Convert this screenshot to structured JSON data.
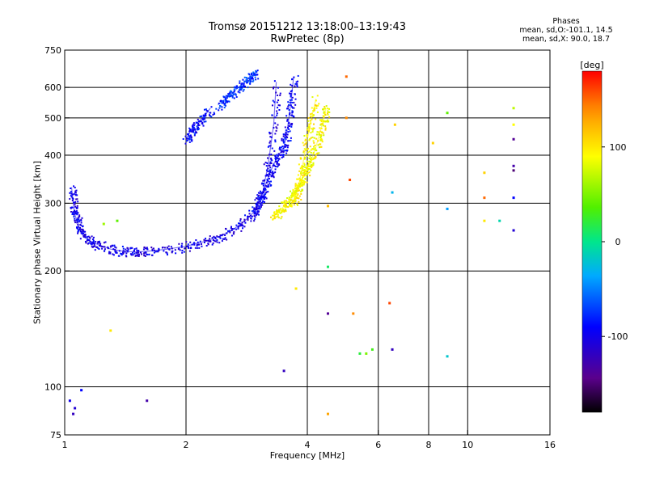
{
  "title_line1": "Tromsø 20151212 13:18:00–13:19:43",
  "title_line2": "RwPretec (8p)",
  "phases_box": {
    "heading": "Phases",
    "line_o": "mean, sd,O:-101.1, 14.5",
    "line_x": "mean, sd,X:  90.0, 18.7"
  },
  "colorbar": {
    "label": "[deg]",
    "ticks": [
      "100",
      "0",
      "-100"
    ],
    "range": [
      -180,
      180
    ]
  },
  "chart_data": {
    "type": "scatter",
    "xlabel": "Frequency [MHz]",
    "ylabel": "Stationary phase Virtual Height [km]",
    "xscale": "log",
    "yscale": "log",
    "xlim": [
      1,
      16
    ],
    "ylim": [
      75,
      750
    ],
    "grid": true,
    "xticks": [
      {
        "v": 1,
        "t": "1"
      },
      {
        "v": 2,
        "t": "2"
      },
      {
        "v": 4,
        "t": "4"
      },
      {
        "v": 6,
        "t": "6"
      },
      {
        "v": 8,
        "t": "8"
      },
      {
        "v": 10,
        "t": "10"
      },
      {
        "v": 16,
        "t": "16"
      }
    ],
    "yticks": [
      {
        "v": 75,
        "t": "75"
      },
      {
        "v": 100,
        "t": "100"
      },
      {
        "v": 200,
        "t": "200"
      },
      {
        "v": 300,
        "t": "300"
      },
      {
        "v": 400,
        "t": "400"
      },
      {
        "v": 500,
        "t": "500"
      },
      {
        "v": 600,
        "t": "600"
      },
      {
        "v": 750,
        "t": "750"
      }
    ],
    "grid_x": [
      2,
      4,
      6,
      8,
      10
    ],
    "grid_y": [
      100,
      200,
      300,
      400,
      500,
      600
    ],
    "color_by": "phase [deg]",
    "traces": [
      {
        "mode": "O",
        "phase": -101.1,
        "x": [
          1.04,
          1.05,
          1.06,
          1.08,
          1.1,
          1.15,
          1.2,
          1.3,
          1.4,
          1.5,
          1.6,
          1.8,
          2.0,
          2.2,
          2.4,
          2.6,
          2.8,
          3.0,
          3.1,
          3.2,
          3.3,
          3.35
        ],
        "y": [
          330,
          300,
          280,
          265,
          250,
          240,
          235,
          228,
          225,
          224,
          225,
          228,
          232,
          238,
          245,
          255,
          270,
          290,
          320,
          380,
          480,
          620
        ]
      },
      {
        "mode": "O",
        "phase": -95,
        "x": [
          2.95,
          3.0,
          3.1,
          3.2,
          3.3,
          3.4,
          3.5,
          3.55,
          3.6,
          3.65,
          3.7
        ],
        "y": [
          280,
          300,
          320,
          350,
          380,
          400,
          420,
          450,
          500,
          560,
          640
        ]
      },
      {
        "mode": "O",
        "phase": -90,
        "x": [
          2.0,
          2.05,
          2.1,
          2.2,
          2.3
        ],
        "y": [
          440,
          460,
          480,
          500,
          530
        ]
      },
      {
        "mode": "O",
        "phase": -75,
        "x": [
          2.4,
          2.5,
          2.6,
          2.7,
          2.8,
          2.9,
          3.0
        ],
        "y": [
          540,
          560,
          580,
          600,
          620,
          640,
          650
        ]
      },
      {
        "mode": "X",
        "phase": 90,
        "x": [
          3.3,
          3.4,
          3.5,
          3.6,
          3.7,
          3.8,
          3.9,
          4.0,
          4.1,
          4.2,
          4.3,
          4.4,
          4.45
        ],
        "y": [
          280,
          285,
          295,
          305,
          320,
          335,
          350,
          370,
          390,
          420,
          460,
          500,
          530
        ]
      },
      {
        "mode": "X",
        "phase": 95,
        "x": [
          3.7,
          3.8,
          3.9,
          4.0,
          4.1,
          4.2
        ],
        "y": [
          300,
          330,
          380,
          440,
          500,
          560
        ]
      }
    ],
    "scatter_points": [
      {
        "x": 1.05,
        "y": 85,
        "phase": -120
      },
      {
        "x": 1.06,
        "y": 88,
        "phase": -110
      },
      {
        "x": 1.03,
        "y": 92,
        "phase": -100
      },
      {
        "x": 1.1,
        "y": 98,
        "phase": -90
      },
      {
        "x": 1.3,
        "y": 140,
        "phase": 100
      },
      {
        "x": 1.35,
        "y": 270,
        "phase": 40
      },
      {
        "x": 1.25,
        "y": 265,
        "phase": 60
      },
      {
        "x": 1.6,
        "y": 92,
        "phase": -130
      },
      {
        "x": 3.5,
        "y": 110,
        "phase": -120
      },
      {
        "x": 3.75,
        "y": 180,
        "phase": 100
      },
      {
        "x": 4.5,
        "y": 155,
        "phase": -140
      },
      {
        "x": 4.5,
        "y": 205,
        "phase": 10
      },
      {
        "x": 4.5,
        "y": 295,
        "phase": 120
      },
      {
        "x": 4.5,
        "y": 85,
        "phase": 130
      },
      {
        "x": 5.2,
        "y": 155,
        "phase": 140
      },
      {
        "x": 5.4,
        "y": 122,
        "phase": 20
      },
      {
        "x": 5.6,
        "y": 122,
        "phase": 50
      },
      {
        "x": 5.8,
        "y": 125,
        "phase": 30
      },
      {
        "x": 5.0,
        "y": 640,
        "phase": 150
      },
      {
        "x": 5.0,
        "y": 500,
        "phase": 140
      },
      {
        "x": 5.1,
        "y": 345,
        "phase": 160
      },
      {
        "x": 6.5,
        "y": 125,
        "phase": -120
      },
      {
        "x": 6.4,
        "y": 165,
        "phase": 160
      },
      {
        "x": 6.5,
        "y": 320,
        "phase": -30
      },
      {
        "x": 6.6,
        "y": 480,
        "phase": 110
      },
      {
        "x": 8.2,
        "y": 430,
        "phase": 110
      },
      {
        "x": 8.9,
        "y": 120,
        "phase": -20
      },
      {
        "x": 8.9,
        "y": 290,
        "phase": -40
      },
      {
        "x": 8.9,
        "y": 515,
        "phase": 40
      },
      {
        "x": 11,
        "y": 360,
        "phase": 110
      },
      {
        "x": 11,
        "y": 270,
        "phase": 100
      },
      {
        "x": 11,
        "y": 310,
        "phase": 150
      },
      {
        "x": 12,
        "y": 270,
        "phase": -10
      },
      {
        "x": 13,
        "y": 530,
        "phase": 70
      },
      {
        "x": 13,
        "y": 480,
        "phase": 90
      },
      {
        "x": 13,
        "y": 440,
        "phase": -140
      },
      {
        "x": 13,
        "y": 375,
        "phase": -130
      },
      {
        "x": 13,
        "y": 365,
        "phase": -150
      },
      {
        "x": 13,
        "y": 310,
        "phase": -90
      },
      {
        "x": 13,
        "y": 255,
        "phase": -110
      }
    ]
  }
}
